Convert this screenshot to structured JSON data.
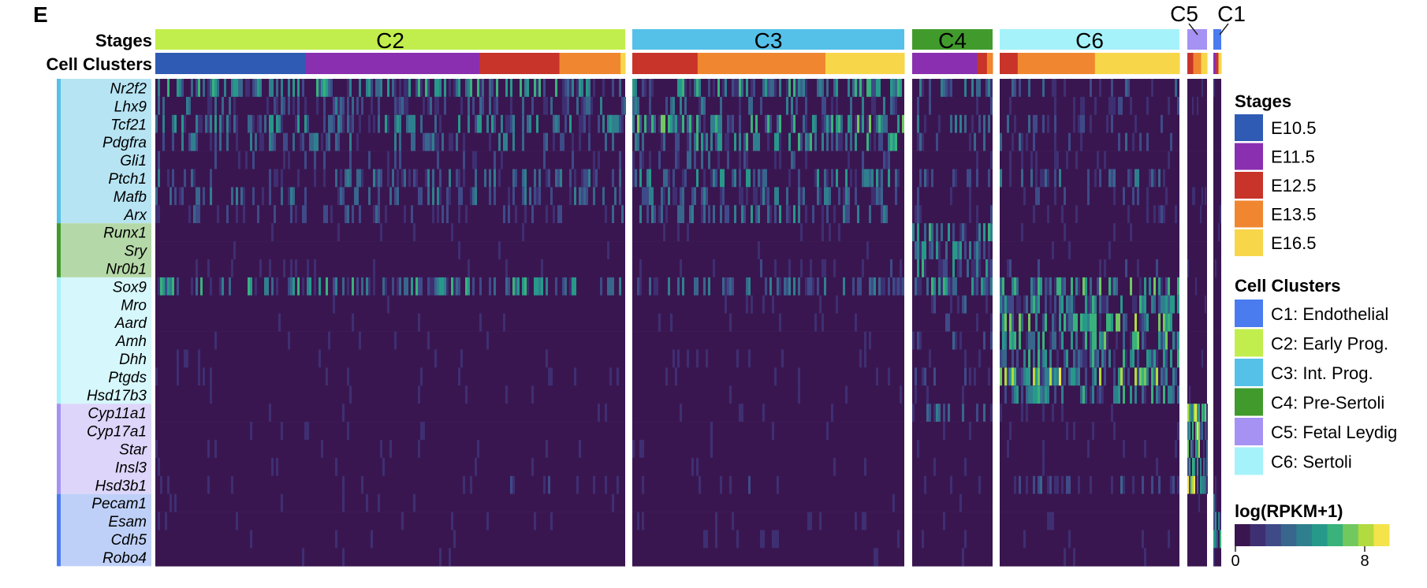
{
  "panel_label": "E",
  "chart_data": {
    "type": "heatmap",
    "row_header_stages": "Stages",
    "row_header_clusters": "Cell Clusters",
    "clusters": [
      {
        "id": "C2",
        "label": "C2",
        "color": "#c2ee4d",
        "stage_mix": [
          {
            "stage": "E10.5",
            "frac": 0.32
          },
          {
            "stage": "E11.5",
            "frac": 0.37
          },
          {
            "stage": "E12.5",
            "frac": 0.17
          },
          {
            "stage": "E13.5",
            "frac": 0.13
          },
          {
            "stage": "E16.5",
            "frac": 0.01
          }
        ]
      },
      {
        "id": "C3",
        "label": "C3",
        "color": "#55c1e8",
        "stage_mix": [
          {
            "stage": "E12.5",
            "frac": 0.24
          },
          {
            "stage": "E13.5",
            "frac": 0.47
          },
          {
            "stage": "E16.5",
            "frac": 0.29
          }
        ]
      },
      {
        "id": "C4",
        "label": "C4",
        "color": "#419b2c",
        "stage_mix": [
          {
            "stage": "E11.5",
            "frac": 0.81
          },
          {
            "stage": "E12.5",
            "frac": 0.12
          },
          {
            "stage": "E13.5",
            "frac": 0.07
          }
        ]
      },
      {
        "id": "C6",
        "label": "C6",
        "color": "#a6f2fa",
        "stage_mix": [
          {
            "stage": "E12.5",
            "frac": 0.1
          },
          {
            "stage": "E13.5",
            "frac": 0.43
          },
          {
            "stage": "E16.5",
            "frac": 0.47
          }
        ]
      },
      {
        "id": "C5",
        "label": "C5",
        "color": "#a592f3",
        "stage_mix": [
          {
            "stage": "E12.5",
            "frac": 0.3
          },
          {
            "stage": "E13.5",
            "frac": 0.4
          },
          {
            "stage": "E16.5",
            "frac": 0.3
          }
        ]
      },
      {
        "id": "C1",
        "label": "C1",
        "color": "#4a7cf0",
        "stage_mix": [
          {
            "stage": "E11.5",
            "frac": 0.35
          },
          {
            "stage": "E12.5",
            "frac": 0.3
          },
          {
            "stage": "E16.5",
            "frac": 0.35
          }
        ]
      }
    ],
    "gene_groups": [
      {
        "group": "C3",
        "color": "#b7e4f3",
        "bar_color": "#55c1e8",
        "genes": [
          "Nr2f2",
          "Lhx9",
          "Tcf21",
          "Pdgfra",
          "Gli1",
          "Ptch1",
          "Mafb",
          "Arx"
        ]
      },
      {
        "group": "C4",
        "color": "#b5d8a8",
        "bar_color": "#419b2c",
        "genes": [
          "Runx1",
          "Sry",
          "Nr0b1"
        ]
      },
      {
        "group": "C6",
        "color": "#d6f7fb",
        "bar_color": "#a6f2fa",
        "genes": [
          "Sox9",
          "Mro",
          "Aard",
          "Amh",
          "Dhh",
          "Ptgds",
          "Hsd17b3"
        ]
      },
      {
        "group": "C5",
        "color": "#ddd6fa",
        "bar_color": "#a592f3",
        "genes": [
          "Cyp11a1",
          "Cyp17a1",
          "Star",
          "Insl3",
          "Hsd3b1"
        ]
      },
      {
        "group": "C1",
        "color": "#bfd0f8",
        "bar_color": "#4a7cf0",
        "genes": [
          "Pecam1",
          "Esam",
          "Cdh5",
          "Robo4"
        ]
      }
    ],
    "expression_profile": {
      "Nr2f2": {
        "C2": 0.55,
        "C3": 0.55,
        "C4": 0.35,
        "C6": 0.25,
        "C5": 0.1,
        "C1": 0.1
      },
      "Lhx9": {
        "C2": 0.3,
        "C3": 0.35,
        "C4": 0.2,
        "C6": 0.15,
        "C5": 0.05,
        "C1": 0.05
      },
      "Tcf21": {
        "C2": 0.45,
        "C3": 0.6,
        "C4": 0.3,
        "C6": 0.25,
        "C5": 0.05,
        "C1": 0.05
      },
      "Pdgfra": {
        "C2": 0.35,
        "C3": 0.5,
        "C4": 0.25,
        "C6": 0.2,
        "C5": 0.05,
        "C1": 0.05
      },
      "Gli1": {
        "C2": 0.15,
        "C3": 0.2,
        "C4": 0.1,
        "C6": 0.1,
        "C5": 0.02,
        "C1": 0.02
      },
      "Ptch1": {
        "C2": 0.3,
        "C3": 0.45,
        "C4": 0.25,
        "C6": 0.3,
        "C5": 0.05,
        "C1": 0.05
      },
      "Mafb": {
        "C2": 0.3,
        "C3": 0.35,
        "C4": 0.15,
        "C6": 0.15,
        "C5": 0.05,
        "C1": 0.05
      },
      "Arx": {
        "C2": 0.2,
        "C3": 0.4,
        "C4": 0.15,
        "C6": 0.1,
        "C5": 0.05,
        "C1": 0.05
      },
      "Runx1": {
        "C2": 0.03,
        "C3": 0.05,
        "C4": 0.5,
        "C6": 0.05,
        "C5": 0.02,
        "C1": 0.02
      },
      "Sry": {
        "C2": 0.02,
        "C3": 0.02,
        "C4": 0.45,
        "C6": 0.03,
        "C5": 0.02,
        "C1": 0.02
      },
      "Nr0b1": {
        "C2": 0.1,
        "C3": 0.1,
        "C4": 0.5,
        "C6": 0.1,
        "C5": 0.02,
        "C1": 0.02
      },
      "Sox9": {
        "C2": 0.5,
        "C3": 0.35,
        "C4": 0.55,
        "C6": 0.6,
        "C5": 0.05,
        "C1": 0.05
      },
      "Mro": {
        "C2": 0.02,
        "C3": 0.05,
        "C4": 0.25,
        "C6": 0.55,
        "C5": 0.02,
        "C1": 0.02
      },
      "Aard": {
        "C2": 0.05,
        "C3": 0.05,
        "C4": 0.2,
        "C6": 0.65,
        "C5": 0.02,
        "C1": 0.02
      },
      "Amh": {
        "C2": 0.02,
        "C3": 0.02,
        "C4": 0.2,
        "C6": 0.6,
        "C5": 0.02,
        "C1": 0.02
      },
      "Dhh": {
        "C2": 0.02,
        "C3": 0.03,
        "C4": 0.15,
        "C6": 0.55,
        "C5": 0.02,
        "C1": 0.02
      },
      "Ptgds": {
        "C2": 0.05,
        "C3": 0.05,
        "C4": 0.2,
        "C6": 0.75,
        "C5": 0.02,
        "C1": 0.02
      },
      "Hsd17b3": {
        "C2": 0.02,
        "C3": 0.03,
        "C4": 0.1,
        "C6": 0.5,
        "C5": 0.02,
        "C1": 0.02
      },
      "Cyp11a1": {
        "C2": 0.02,
        "C3": 0.05,
        "C4": 0.3,
        "C6": 0.05,
        "C5": 0.85,
        "C1": 0.02
      },
      "Cyp17a1": {
        "C2": 0.02,
        "C3": 0.05,
        "C4": 0.05,
        "C6": 0.05,
        "C5": 0.8,
        "C1": 0.02
      },
      "Star": {
        "C2": 0.05,
        "C3": 0.05,
        "C4": 0.05,
        "C6": 0.05,
        "C5": 0.7,
        "C1": 0.02
      },
      "Insl3": {
        "C2": 0.02,
        "C3": 0.02,
        "C4": 0.05,
        "C6": 0.05,
        "C5": 0.7,
        "C1": 0.02
      },
      "Hsd3b1": {
        "C2": 0.12,
        "C3": 0.1,
        "C4": 0.1,
        "C6": 0.2,
        "C5": 0.85,
        "C1": 0.02
      },
      "Pecam1": {
        "C2": 0.02,
        "C3": 0.03,
        "C4": 0.02,
        "C6": 0.02,
        "C5": 0.02,
        "C1": 0.6
      },
      "Esam": {
        "C2": 0.03,
        "C3": 0.05,
        "C4": 0.03,
        "C6": 0.03,
        "C5": 0.02,
        "C1": 0.6
      },
      "Cdh5": {
        "C2": 0.02,
        "C3": 0.08,
        "C4": 0.03,
        "C6": 0.02,
        "C5": 0.02,
        "C1": 0.6
      },
      "Robo4": {
        "C2": 0.02,
        "C3": 0.03,
        "C4": 0.03,
        "C6": 0.02,
        "C5": 0.02,
        "C1": 0.6
      }
    },
    "legends": {
      "stages": {
        "title": "Stages",
        "items": [
          {
            "label": "E10.5",
            "color": "#2f5bb5"
          },
          {
            "label": "E11.5",
            "color": "#8a2fb0"
          },
          {
            "label": "E12.5",
            "color": "#c8342a"
          },
          {
            "label": "E13.5",
            "color": "#f0862f"
          },
          {
            "label": "E16.5",
            "color": "#f7d64a"
          }
        ]
      },
      "clusters": {
        "title": "Cell Clusters",
        "items": [
          {
            "label": "C1: Endothelial",
            "color": "#4a7cf0"
          },
          {
            "label": "C2: Early Prog.",
            "color": "#c2ee4d"
          },
          {
            "label": "C3: Int. Prog.",
            "color": "#55c1e8"
          },
          {
            "label": "C4: Pre-Sertoli",
            "color": "#419b2c"
          },
          {
            "label": "C5: Fetal Leydig",
            "color": "#a592f3"
          },
          {
            "label": "C6: Sertoli",
            "color": "#a6f2fa"
          }
        ]
      },
      "colorbar": {
        "title": "log(RPKM+1)",
        "min": 0,
        "max": 8,
        "min_label": "0",
        "max_label": "8",
        "colors": [
          "#3a1650",
          "#3e2f72",
          "#3e4b88",
          "#38668c",
          "#2f808e",
          "#27998a",
          "#39b27b",
          "#71c85f",
          "#b1db3e",
          "#f4e34b"
        ]
      }
    }
  }
}
